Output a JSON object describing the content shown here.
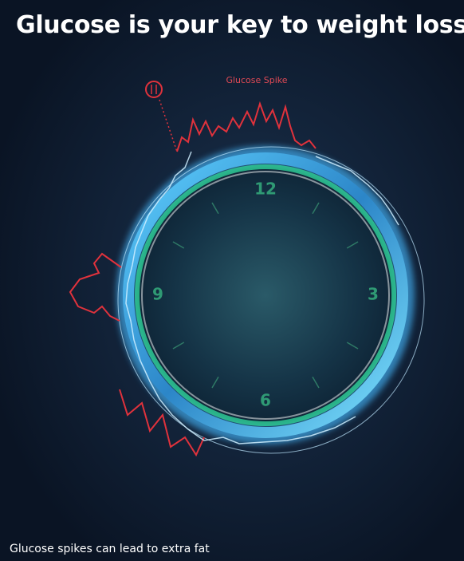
{
  "header": {
    "title": "Glucose is your key to weight loss."
  },
  "annotation": {
    "label": "Glucose Spike"
  },
  "clock": {
    "numbers": [
      "12",
      "3",
      "6",
      "9"
    ]
  },
  "caption": {
    "text": "Glucose spikes can lead to extra fat"
  }
}
